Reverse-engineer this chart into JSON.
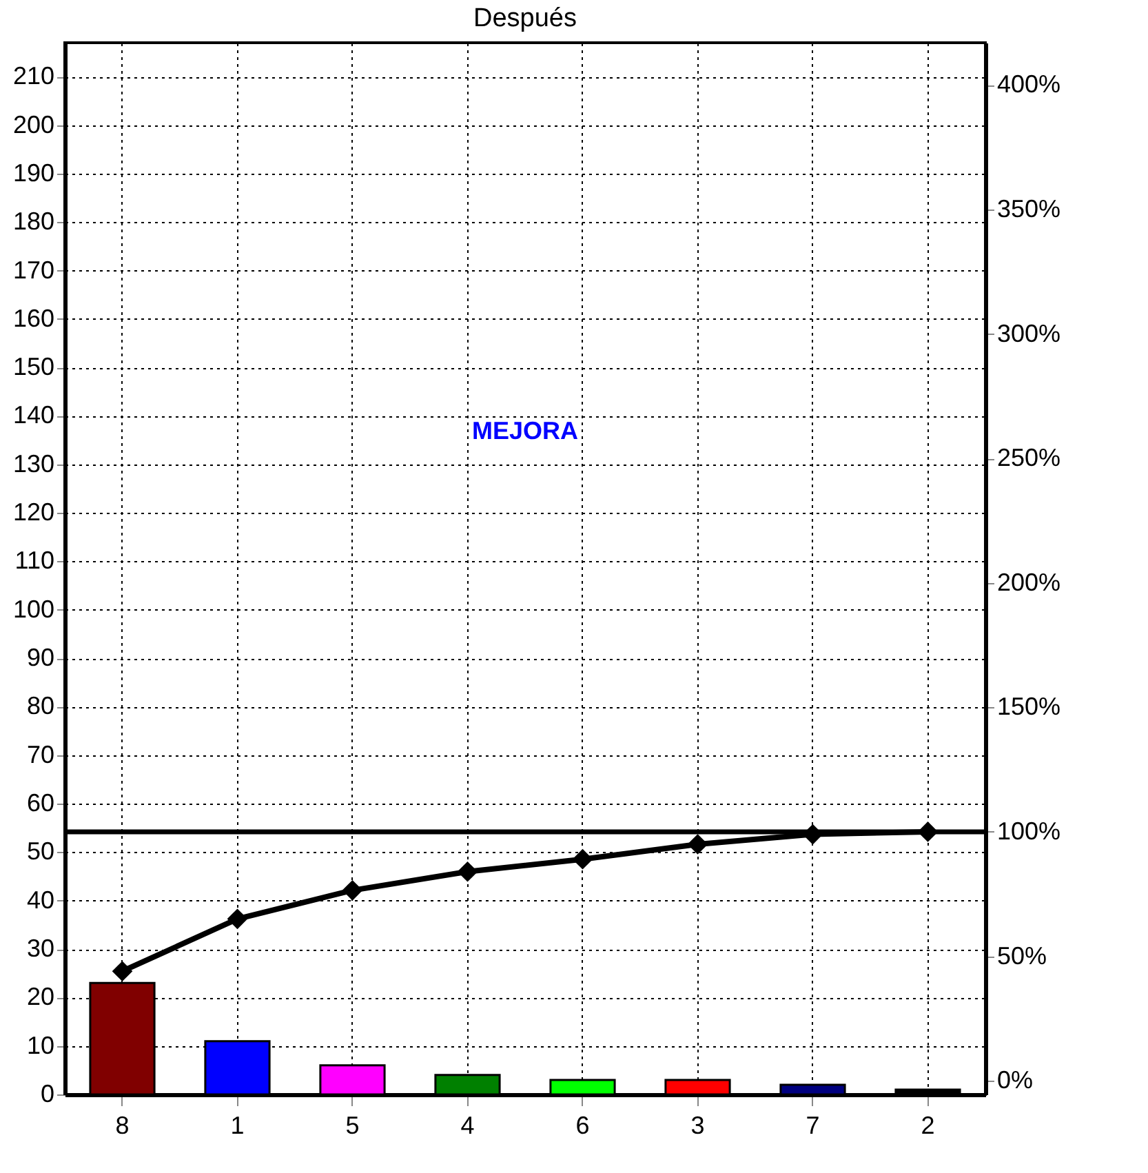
{
  "chart_data": {
    "type": "bar",
    "title": "Después",
    "categories": [
      "8",
      "1",
      "5",
      "4",
      "6",
      "3",
      "7",
      "2"
    ],
    "series": [
      {
        "colors": [
          "#800000",
          "#0000ff",
          "#ff00ff",
          "#008000",
          "#00ff00",
          "#ff0000",
          "#000080",
          "#000000"
        ],
        "values": [
          23,
          11,
          6,
          4,
          3,
          3,
          2,
          1
        ]
      },
      {
        "type": "line",
        "axis": "y2",
        "color": "#000000",
        "marker": "diamond",
        "values": [
          44,
          65,
          76.5,
          84,
          89,
          95,
          99,
          100
        ]
      }
    ],
    "ylim": [
      0,
      217
    ],
    "yticks": [
      0,
      10,
      20,
      30,
      40,
      50,
      60,
      70,
      80,
      90,
      100,
      110,
      120,
      130,
      140,
      150,
      160,
      170,
      180,
      190,
      200,
      210
    ],
    "y2lim": [
      -5.5,
      417
    ],
    "y2ticks": [
      {
        "value": 0,
        "label": "0%"
      },
      {
        "value": 50,
        "label": "50%"
      },
      {
        "value": 100,
        "label": "100%"
      },
      {
        "value": 150,
        "label": "150%"
      },
      {
        "value": 200,
        "label": "200%"
      },
      {
        "value": 250,
        "label": "250%"
      },
      {
        "value": 300,
        "label": "300%"
      },
      {
        "value": 350,
        "label": "350%"
      },
      {
        "value": 400,
        "label": "400%"
      }
    ],
    "ref_lines": [
      {
        "axis": "y2",
        "value": 100,
        "color": "#000000"
      }
    ],
    "annotations": [
      "MEJORA"
    ],
    "grid": true
  }
}
